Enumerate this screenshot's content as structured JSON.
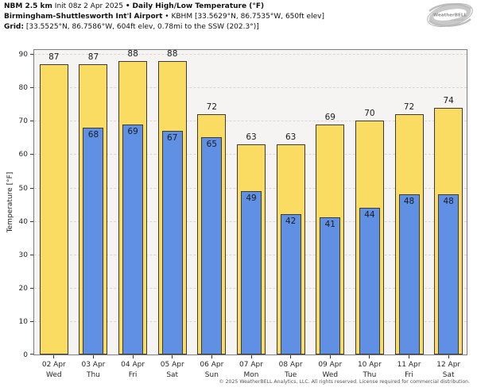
{
  "title": {
    "model": "NBM 2.5 km",
    "init": "Init 08z 2 Apr 2025",
    "separator": "•",
    "product": "Daily High/Low Temperature (°F)",
    "station": "Birmingham-Shuttlesworth Int'l Airport",
    "station_details": "KBHM [33.5629°N, 86.7535°W, 650ft elev]",
    "grid_label": "Grid:",
    "grid_details": "[33.5525°N, 86.7586°W, 604ft elev, 0.78mi to the SSW (202.3°)]"
  },
  "logo": {
    "brand": "WeatherBELL",
    "sub": "Analytics LLC"
  },
  "chart_data": {
    "type": "bar",
    "title": "Daily High/Low Temperature (°F)",
    "ylabel": "Temperature [°F]",
    "ylim": [
      0,
      91.7
    ],
    "yticks": [
      0,
      10,
      20,
      30,
      40,
      50,
      60,
      70,
      80,
      90
    ],
    "grid": true,
    "legend_position": "none",
    "categories": [
      {
        "date": "02 Apr",
        "day": "Wed"
      },
      {
        "date": "03 Apr",
        "day": "Thu"
      },
      {
        "date": "04 Apr",
        "day": "Fri"
      },
      {
        "date": "05 Apr",
        "day": "Sat"
      },
      {
        "date": "06 Apr",
        "day": "Sun"
      },
      {
        "date": "07 Apr",
        "day": "Mon"
      },
      {
        "date": "08 Apr",
        "day": "Tue"
      },
      {
        "date": "09 Apr",
        "day": "Wed"
      },
      {
        "date": "10 Apr",
        "day": "Thu"
      },
      {
        "date": "11 Apr",
        "day": "Fri"
      },
      {
        "date": "12 Apr",
        "day": "Sat"
      }
    ],
    "series": [
      {
        "name": "Daily High",
        "color": "#fbdc63",
        "values": [
          87,
          87,
          88,
          88,
          72,
          63,
          63,
          69,
          70,
          72,
          74
        ]
      },
      {
        "name": "Daily Low",
        "color": "#5f90e3",
        "values": [
          null,
          68,
          69,
          67,
          65,
          49,
          42,
          41,
          44,
          48,
          48
        ]
      }
    ]
  },
  "colors": {
    "plot_background": "#f5f4f2",
    "grid_line": "#d7d7d5",
    "bar_border": "#3a3a3a",
    "high_bar": "#fbdc63",
    "low_bar": "#5f90e3"
  },
  "footer": {
    "copyright": "© 2025 WeatherBELL Analytics, LLC. All rights reserved. License required for commercial distribution."
  }
}
